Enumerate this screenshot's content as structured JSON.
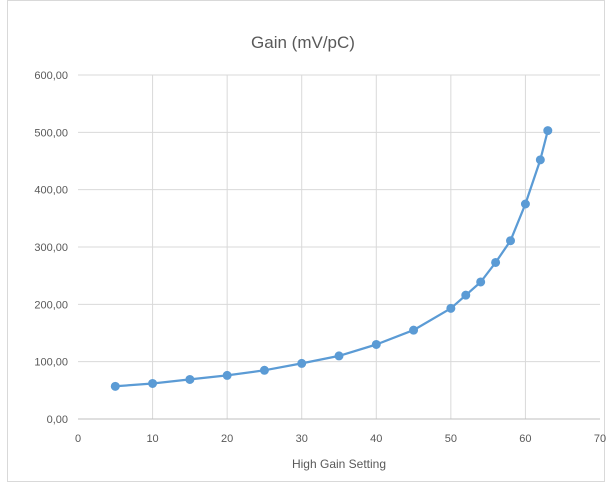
{
  "chart_data": {
    "type": "line",
    "title": "Gain (mV/pC)",
    "xlabel": "High Gain Setting",
    "ylabel": "",
    "xlim": [
      0,
      70
    ],
    "ylim": [
      0,
      600
    ],
    "x_ticks": [
      "0",
      "10",
      "20",
      "30",
      "40",
      "50",
      "60",
      "70"
    ],
    "y_ticks": [
      "0,00",
      "100,00",
      "200,00",
      "300,00",
      "400,00",
      "500,00",
      "600,00"
    ],
    "grid": true,
    "legend": "none",
    "series": [
      {
        "color": "#5b9bd5",
        "x": [
          5,
          10,
          15,
          20,
          25,
          30,
          35,
          40,
          45,
          50,
          52,
          54,
          56,
          58,
          60,
          62,
          63
        ],
        "y": [
          57,
          62,
          69,
          76,
          85,
          97,
          110,
          130,
          155,
          193,
          216,
          239,
          273,
          311,
          375,
          452,
          503
        ]
      }
    ]
  }
}
